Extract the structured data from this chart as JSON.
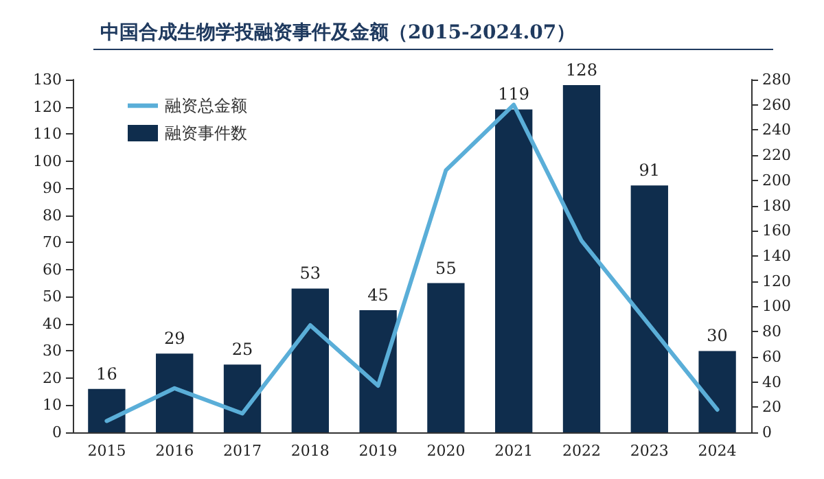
{
  "chart_data": {
    "type": "bar",
    "title": "中国合成生物学投融资事件及金额（2015-2024.07）",
    "categories": [
      "2015",
      "2016",
      "2017",
      "2018",
      "2019",
      "2020",
      "2021",
      "2022",
      "2023",
      "2024"
    ],
    "series": [
      {
        "name": "融资总金额",
        "type": "line",
        "axis": "y2",
        "color": "#5aaed8",
        "values": [
          9,
          35,
          15,
          85,
          37,
          208,
          260,
          152,
          85,
          18
        ]
      },
      {
        "name": "融资事件数",
        "color": "#0f2d4d",
        "values": [
          16,
          29,
          25,
          53,
          45,
          55,
          119,
          128,
          91,
          30
        ],
        "value_labels": [
          "16",
          "29",
          "25",
          "53",
          "45",
          "55",
          "119",
          "128",
          "91",
          "30"
        ]
      }
    ],
    "ylim": [
      0,
      130
    ],
    "yticks": [
      0,
      10,
      20,
      30,
      40,
      50,
      60,
      70,
      80,
      90,
      100,
      110,
      120,
      130
    ],
    "y2lim": [
      0,
      280
    ],
    "y2ticks": [
      0,
      20,
      40,
      60,
      80,
      100,
      120,
      140,
      160,
      180,
      200,
      220,
      240,
      260,
      280
    ],
    "grid": false,
    "legend": "top left",
    "marker": "none"
  }
}
